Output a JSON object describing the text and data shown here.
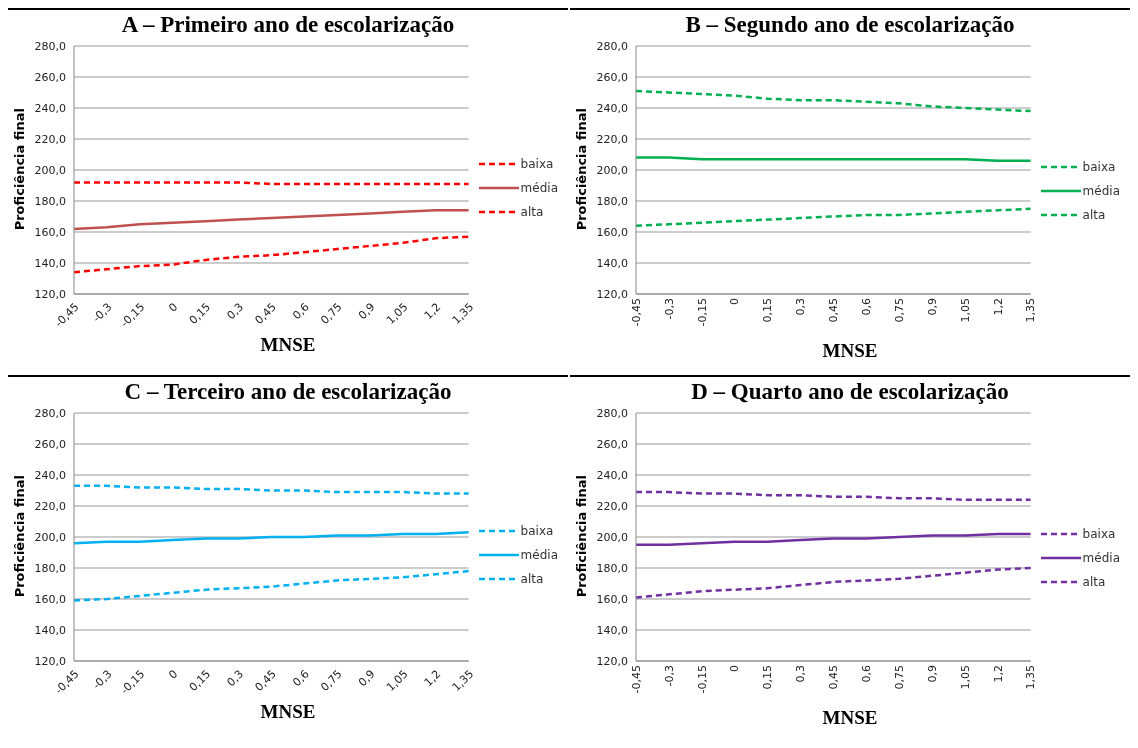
{
  "chart_data": [
    {
      "type": "line",
      "title": "A – Primeiro ano de escolarização",
      "xlabel": "MNSE",
      "ylabel": "Proficiência final",
      "categories": [
        "-0,45",
        "-0,3",
        "-0,15",
        "0",
        "0,15",
        "0,3",
        "0,45",
        "0,6",
        "0,75",
        "0,9",
        "1,05",
        "1,2",
        "1,35"
      ],
      "ylim": [
        120,
        280
      ],
      "yticks": [
        {
          "value": 120,
          "label": "120,0"
        },
        {
          "value": 140,
          "label": "140,0"
        },
        {
          "value": 160,
          "label": "160,0"
        },
        {
          "value": 180,
          "label": "180,0"
        },
        {
          "value": 200,
          "label": "200,0"
        },
        {
          "value": 220,
          "label": "220,0"
        },
        {
          "value": 240,
          "label": "240,0"
        },
        {
          "value": 260,
          "label": "260,0"
        },
        {
          "value": 280,
          "label": "280,0"
        }
      ],
      "grid": "y",
      "legend": "right",
      "marker": "none",
      "series": [
        {
          "name": "baixa",
          "color": "#ff0000",
          "line_style": "dashed",
          "values": [
            192,
            192,
            192,
            192,
            192,
            192,
            191,
            191,
            191,
            191,
            191,
            191,
            191
          ]
        },
        {
          "name": "média",
          "color": "#c0504d",
          "line_style": "solid",
          "values": [
            162,
            163,
            165,
            166,
            167,
            168,
            169,
            170,
            171,
            172,
            173,
            174,
            174
          ]
        },
        {
          "name": "alta",
          "color": "#ff0000",
          "line_style": "dashed",
          "values": [
            134,
            136,
            138,
            139,
            142,
            144,
            145,
            147,
            149,
            151,
            153,
            156,
            157
          ]
        }
      ]
    },
    {
      "type": "line",
      "title": "B – Segundo ano de escolarização",
      "xlabel": "MNSE",
      "ylabel": "Proficiência final",
      "categories": [
        "-0,45",
        "-0,3",
        "-0,15",
        "0",
        "0,15",
        "0,3",
        "0,45",
        "0,6",
        "0,75",
        "0,9",
        "1,05",
        "1,2",
        "1,35"
      ],
      "ylim": [
        120,
        280
      ],
      "yticks": [
        {
          "value": 120,
          "label": "120,0"
        },
        {
          "value": 140,
          "label": "140,0"
        },
        {
          "value": 160,
          "label": "160,0"
        },
        {
          "value": 180,
          "label": "180,0"
        },
        {
          "value": 200,
          "label": "200,0"
        },
        {
          "value": 220,
          "label": "220,0"
        },
        {
          "value": 240,
          "label": "240,0"
        },
        {
          "value": 260,
          "label": "260,0"
        },
        {
          "value": 280,
          "label": "280,0"
        }
      ],
      "grid": "y",
      "legend": "right",
      "marker": "none",
      "series": [
        {
          "name": "baixa",
          "color": "#00b050",
          "line_style": "dashed",
          "values": [
            251,
            250,
            249,
            248,
            246,
            245,
            245,
            244,
            243,
            241,
            240,
            239,
            238
          ]
        },
        {
          "name": "média",
          "color": "#00b050",
          "line_style": "solid",
          "values": [
            208,
            208,
            207,
            207,
            207,
            207,
            207,
            207,
            207,
            207,
            207,
            206,
            206
          ]
        },
        {
          "name": "alta",
          "color": "#00b050",
          "line_style": "dashed",
          "values": [
            164,
            165,
            166,
            167,
            168,
            169,
            170,
            171,
            171,
            172,
            173,
            174,
            175
          ]
        }
      ]
    },
    {
      "type": "line",
      "title": "C – Terceiro ano de escolarização",
      "xlabel": "MNSE",
      "ylabel": "Proficiência final",
      "categories": [
        "-0,45",
        "-0,3",
        "-0,15",
        "0",
        "0,15",
        "0,3",
        "0,45",
        "0,6",
        "0,75",
        "0,9",
        "1,05",
        "1,2",
        "1,35"
      ],
      "ylim": [
        120,
        280
      ],
      "yticks": [
        {
          "value": 120,
          "label": "120,0"
        },
        {
          "value": 140,
          "label": "140,0"
        },
        {
          "value": 160,
          "label": "160,0"
        },
        {
          "value": 180,
          "label": "180,0"
        },
        {
          "value": 200,
          "label": "200,0"
        },
        {
          "value": 220,
          "label": "220,0"
        },
        {
          "value": 240,
          "label": "240,0"
        },
        {
          "value": 260,
          "label": "260,0"
        },
        {
          "value": 280,
          "label": "280,0"
        }
      ],
      "grid": "y",
      "legend": "right",
      "marker": "none",
      "series": [
        {
          "name": "baixa",
          "color": "#00b0f0",
          "line_style": "dashed",
          "values": [
            233,
            233,
            232,
            232,
            231,
            231,
            230,
            230,
            229,
            229,
            229,
            228,
            228
          ]
        },
        {
          "name": "média",
          "color": "#00b0f0",
          "line_style": "solid",
          "values": [
            196,
            197,
            197,
            198,
            199,
            199,
            200,
            200,
            201,
            201,
            202,
            202,
            203
          ]
        },
        {
          "name": "alta",
          "color": "#00b0f0",
          "line_style": "dashed",
          "values": [
            159,
            160,
            162,
            164,
            166,
            167,
            168,
            170,
            172,
            173,
            174,
            176,
            178
          ]
        }
      ]
    },
    {
      "type": "line",
      "title": "D – Quarto ano de escolarização",
      "xlabel": "MNSE",
      "ylabel": "Proficiência final",
      "categories": [
        "-0,45",
        "-0,3",
        "-0,15",
        "0",
        "0,15",
        "0,3",
        "0,45",
        "0,6",
        "0,75",
        "0,9",
        "1,05",
        "1,2",
        "1,35"
      ],
      "ylim": [
        120,
        280
      ],
      "yticks": [
        {
          "value": 120,
          "label": "120,0"
        },
        {
          "value": 140,
          "label": "140,0"
        },
        {
          "value": 160,
          "label": "160,0"
        },
        {
          "value": 180,
          "label": "180,0"
        },
        {
          "value": 200,
          "label": "200,0"
        },
        {
          "value": 220,
          "label": "220,0"
        },
        {
          "value": 240,
          "label": "240,0"
        },
        {
          "value": 260,
          "label": "260,0"
        },
        {
          "value": 280,
          "label": "280,0"
        }
      ],
      "grid": "y",
      "legend": "right",
      "marker": "none",
      "series": [
        {
          "name": "baixa",
          "color": "#7030a0",
          "line_style": "dashed",
          "values": [
            229,
            229,
            228,
            228,
            227,
            227,
            226,
            226,
            225,
            225,
            224,
            224,
            224
          ]
        },
        {
          "name": "média",
          "color": "#7030a0",
          "line_style": "solid",
          "values": [
            195,
            195,
            196,
            197,
            197,
            198,
            199,
            199,
            200,
            201,
            201,
            202,
            202
          ]
        },
        {
          "name": "alta",
          "color": "#7030a0",
          "line_style": "dashed",
          "values": [
            161,
            163,
            165,
            166,
            167,
            169,
            171,
            172,
            173,
            175,
            177,
            179,
            180
          ]
        }
      ]
    }
  ]
}
